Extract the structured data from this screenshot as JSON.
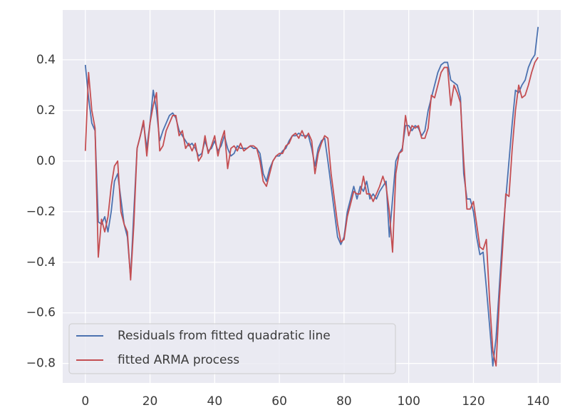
{
  "chart_data": {
    "type": "line",
    "x": [
      0,
      1,
      2,
      3,
      4,
      5,
      6,
      7,
      8,
      9,
      10,
      11,
      12,
      13,
      14,
      15,
      16,
      17,
      18,
      19,
      20,
      21,
      22,
      23,
      24,
      25,
      26,
      27,
      28,
      29,
      30,
      31,
      32,
      33,
      34,
      35,
      36,
      37,
      38,
      39,
      40,
      41,
      42,
      43,
      44,
      45,
      46,
      47,
      48,
      49,
      50,
      51,
      52,
      53,
      54,
      55,
      56,
      57,
      58,
      59,
      60,
      61,
      62,
      63,
      64,
      65,
      66,
      67,
      68,
      69,
      70,
      71,
      72,
      73,
      74,
      75,
      76,
      77,
      78,
      79,
      80,
      81,
      82,
      83,
      84,
      85,
      86,
      87,
      88,
      89,
      90,
      91,
      92,
      93,
      94,
      95,
      96,
      97,
      98,
      99,
      100,
      101,
      102,
      103,
      104,
      105,
      106,
      107,
      108,
      109,
      110,
      111,
      112,
      113,
      114,
      115,
      116,
      117,
      118,
      119,
      120,
      121,
      122,
      123,
      124,
      125,
      126,
      127,
      128,
      129,
      130,
      131,
      132,
      133,
      134,
      135,
      136,
      137,
      138,
      139,
      140
    ],
    "series": [
      {
        "name": "Residuals from fitted quadratic line",
        "color": "#4c72b0",
        "values": [
          0.38,
          0.25,
          0.15,
          0.12,
          -0.24,
          -0.25,
          -0.22,
          -0.28,
          -0.2,
          -0.08,
          -0.05,
          -0.15,
          -0.25,
          -0.3,
          -0.46,
          -0.2,
          0.05,
          0.1,
          0.15,
          0.05,
          0.15,
          0.28,
          0.2,
          0.08,
          0.12,
          0.15,
          0.18,
          0.19,
          0.17,
          0.12,
          0.1,
          0.08,
          0.06,
          0.07,
          0.05,
          0.02,
          0.03,
          0.08,
          0.04,
          0.05,
          0.08,
          0.04,
          0.06,
          0.1,
          0.05,
          0.02,
          0.03,
          0.06,
          0.05,
          0.05,
          0.05,
          0.06,
          0.05,
          0.05,
          0.03,
          -0.05,
          -0.08,
          -0.03,
          0.0,
          0.02,
          0.02,
          0.04,
          0.05,
          0.08,
          0.1,
          0.1,
          0.11,
          0.1,
          0.1,
          0.1,
          0.05,
          -0.02,
          0.05,
          0.08,
          0.09,
          0.0,
          -0.1,
          -0.2,
          -0.3,
          -0.33,
          -0.3,
          -0.2,
          -0.15,
          -0.1,
          -0.15,
          -0.1,
          -0.12,
          -0.08,
          -0.15,
          -0.13,
          -0.15,
          -0.12,
          -0.1,
          -0.08,
          -0.3,
          -0.15,
          0.0,
          0.03,
          0.05,
          0.14,
          0.14,
          0.12,
          0.14,
          0.13,
          0.1,
          0.12,
          0.2,
          0.25,
          0.3,
          0.35,
          0.38,
          0.39,
          0.39,
          0.32,
          0.31,
          0.3,
          0.25,
          -0.05,
          -0.15,
          -0.15,
          -0.2,
          -0.3,
          -0.37,
          -0.36,
          -0.5,
          -0.65,
          -0.81,
          -0.7,
          -0.5,
          -0.3,
          -0.15,
          0.0,
          0.15,
          0.28,
          0.27,
          0.3,
          0.32,
          0.37,
          0.4,
          0.42,
          0.53
        ]
      },
      {
        "name": "fitted ARMA process",
        "color": "#c44e52",
        "values": [
          0.04,
          0.35,
          0.2,
          0.13,
          -0.38,
          -0.23,
          -0.28,
          -0.22,
          -0.1,
          -0.02,
          0.0,
          -0.2,
          -0.25,
          -0.28,
          -0.47,
          -0.25,
          0.05,
          0.1,
          0.16,
          0.02,
          0.15,
          0.22,
          0.27,
          0.04,
          0.06,
          0.12,
          0.15,
          0.18,
          0.18,
          0.1,
          0.12,
          0.05,
          0.07,
          0.04,
          0.07,
          0.0,
          0.02,
          0.1,
          0.03,
          0.06,
          0.1,
          0.02,
          0.08,
          0.12,
          -0.03,
          0.05,
          0.06,
          0.04,
          0.07,
          0.04,
          0.05,
          0.06,
          0.06,
          0.05,
          0.0,
          -0.08,
          -0.1,
          -0.05,
          0.0,
          0.02,
          0.03,
          0.03,
          0.06,
          0.07,
          0.1,
          0.11,
          0.09,
          0.12,
          0.09,
          0.11,
          0.08,
          -0.05,
          0.03,
          0.07,
          0.1,
          0.09,
          -0.05,
          -0.15,
          -0.25,
          -0.32,
          -0.31,
          -0.22,
          -0.17,
          -0.12,
          -0.13,
          -0.13,
          -0.06,
          -0.13,
          -0.13,
          -0.16,
          -0.13,
          -0.1,
          -0.06,
          -0.1,
          -0.2,
          -0.36,
          -0.05,
          0.03,
          0.04,
          0.18,
          0.1,
          0.14,
          0.13,
          0.14,
          0.09,
          0.09,
          0.13,
          0.26,
          0.25,
          0.3,
          0.35,
          0.37,
          0.37,
          0.22,
          0.3,
          0.27,
          0.23,
          0.0,
          -0.19,
          -0.19,
          -0.16,
          -0.25,
          -0.34,
          -0.35,
          -0.31,
          -0.55,
          -0.75,
          -0.81,
          -0.55,
          -0.35,
          -0.13,
          -0.14,
          0.05,
          0.2,
          0.3,
          0.25,
          0.26,
          0.3,
          0.35,
          0.39,
          0.41
        ]
      }
    ],
    "xlim": [
      -7,
      147
    ],
    "ylim": [
      -0.877,
      0.597
    ],
    "xticks": [
      0,
      20,
      40,
      60,
      80,
      100,
      120,
      140
    ],
    "yticks": [
      {
        "value": -0.8,
        "label": "−0.8"
      },
      {
        "value": -0.6,
        "label": "−0.6"
      },
      {
        "value": -0.4,
        "label": "−0.4"
      },
      {
        "value": -0.2,
        "label": "−0.2"
      },
      {
        "value": 0.0,
        "label": "0.0"
      },
      0.2,
      0.4
    ],
    "grid": true,
    "legend": "lower left"
  }
}
